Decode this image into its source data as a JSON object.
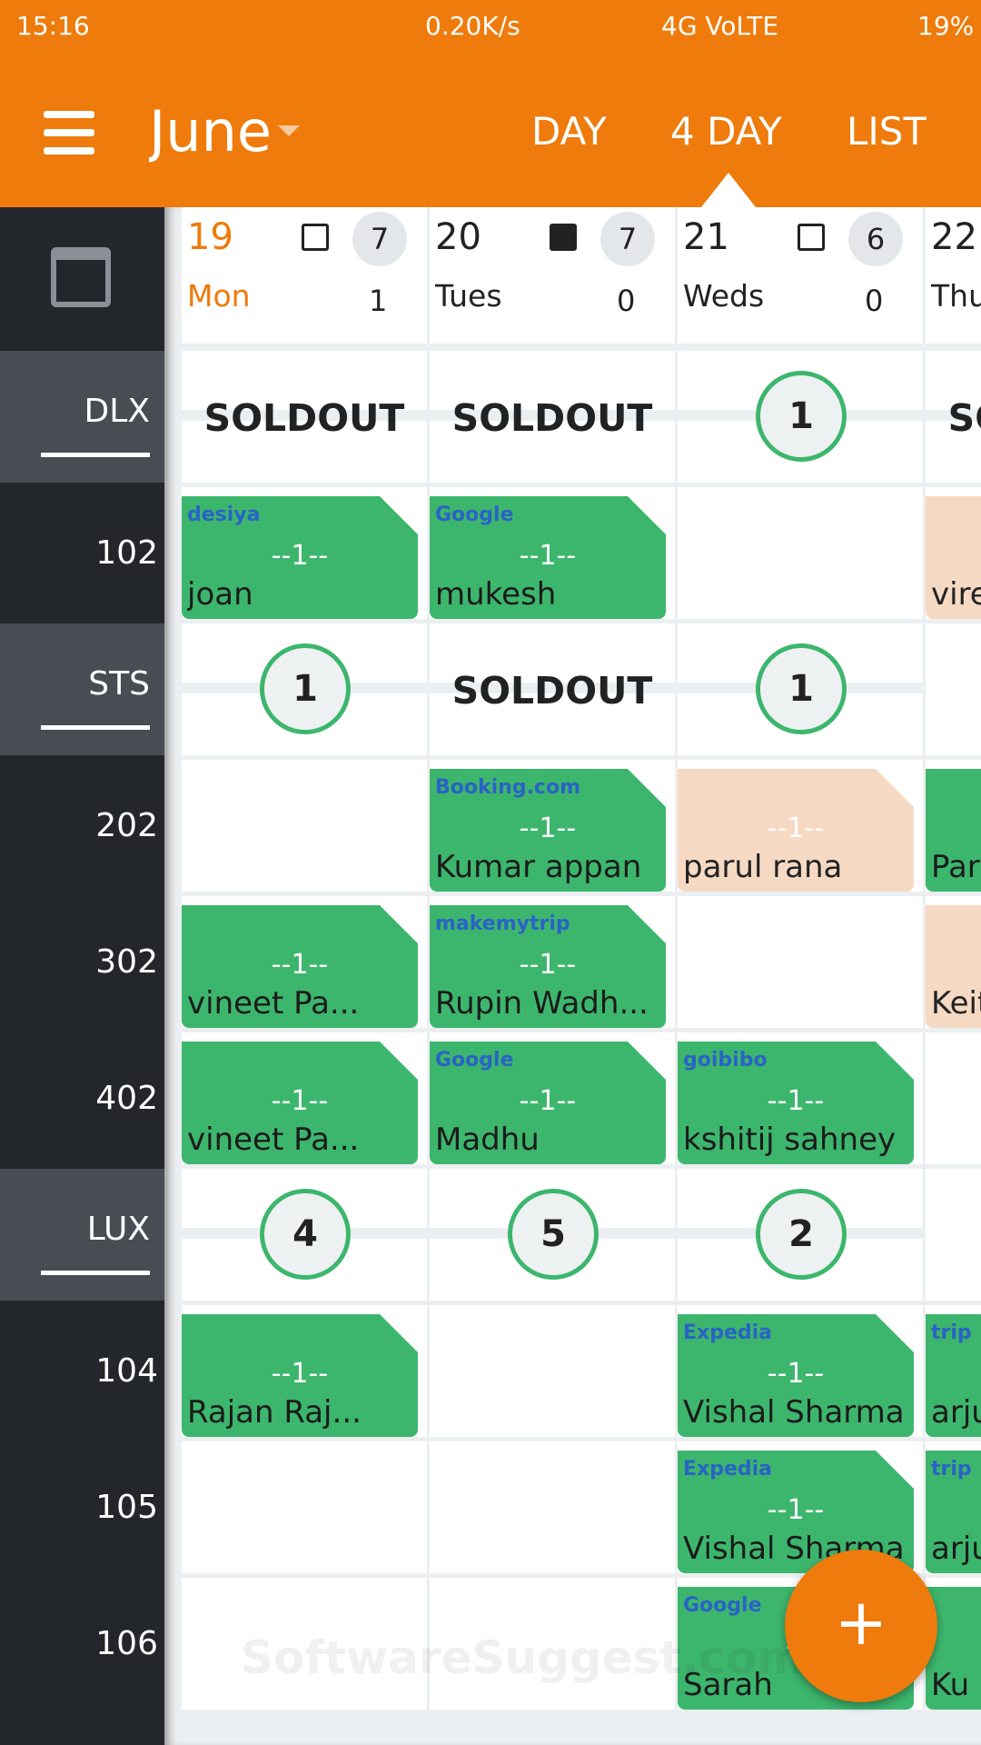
{
  "status_bar": {
    "time": "15:16",
    "speed": "0.20K/s",
    "network": "4G VoLTE",
    "battery": "19%"
  },
  "app_bar": {
    "month": "June",
    "tabs": [
      "DAY",
      "4 DAY",
      "LIST"
    ]
  },
  "columns": [
    {
      "date": "19",
      "day": "Mon",
      "notes": "7",
      "count": "1"
    },
    {
      "date": "20",
      "day": "Tues",
      "notes": "7",
      "count": "0"
    },
    {
      "date": "21",
      "day": "Weds",
      "notes": "6",
      "count": "0"
    },
    {
      "date": "22",
      "day": "Thu"
    }
  ],
  "rows": [
    {
      "label": "DLX",
      "kind": "category",
      "cells": [
        {
          "text": "SOLDOUT"
        },
        {
          "text": "SOLDOUT"
        },
        {
          "count": 1
        },
        {
          "text": "SOLDOUT"
        }
      ]
    },
    {
      "label": "102",
      "kind": "room",
      "cells": [
        {
          "source": "desiya",
          "ref": "--1--",
          "guest": "joan",
          "color": "#3db66d"
        },
        {
          "source": "Google",
          "ref": "--1--",
          "guest": "mukesh",
          "color": "#3db66d"
        },
        null,
        {
          "guest": "vire",
          "color": "#f5d9c3"
        }
      ]
    },
    {
      "label": "STS",
      "kind": "category",
      "cells": [
        {
          "count": 1
        },
        {
          "text": "SOLDOUT"
        },
        {
          "count": 1
        },
        null
      ]
    },
    {
      "label": "202",
      "kind": "room",
      "cells": [
        null,
        {
          "source": "Booking.com",
          "ref": "--1--",
          "guest": "Kumar appan",
          "color": "#3db66d"
        },
        {
          "ref": "--1--",
          "guest": "parul rana",
          "color": "#f5d9c3"
        },
        {
          "guest": "Par",
          "color": "#3db66d"
        }
      ]
    },
    {
      "label": "302",
      "kind": "room",
      "cells": [
        {
          "ref": "--1--",
          "guest": "vineet Pa...",
          "color": "#3db66d"
        },
        {
          "source": "makemytrip",
          "ref": "--1--",
          "guest": "Rupin Wadh...",
          "color": "#3db66d"
        },
        null,
        {
          "guest": "Keit",
          "color": "#f5d9c3"
        }
      ]
    },
    {
      "label": "402",
      "kind": "room",
      "cells": [
        {
          "ref": "--1--",
          "guest": "vineet Pa...",
          "color": "#3db66d"
        },
        {
          "source": "Google",
          "ref": "--1--",
          "guest": "Madhu",
          "color": "#3db66d"
        },
        {
          "source": "goibibo",
          "ref": "--1--",
          "guest": "kshitij sahney",
          "color": "#3db66d"
        },
        null
      ]
    },
    {
      "label": "LUX",
      "kind": "category",
      "cells": [
        {
          "count": 4
        },
        {
          "count": 5
        },
        {
          "count": 2
        },
        null
      ]
    },
    {
      "label": "104",
      "kind": "room",
      "cells": [
        {
          "ref": "--1--",
          "guest": "Rajan Raj...",
          "color": "#3db66d"
        },
        null,
        {
          "source": "Expedia",
          "ref": "--1--",
          "guest": "Vishal Sharma",
          "color": "#3db66d"
        },
        {
          "source": "trip",
          "guest": "arju",
          "color": "#3db66d"
        }
      ]
    },
    {
      "label": "105",
      "kind": "room",
      "cells": [
        null,
        null,
        {
          "source": "Expedia",
          "ref": "--1--",
          "guest": "Vishal Sharma",
          "color": "#3db66d"
        },
        {
          "source": "trip",
          "guest": "arju",
          "color": "#3db66d"
        }
      ]
    },
    {
      "label": "106",
      "kind": "room",
      "cells": [
        null,
        null,
        {
          "source": "Google",
          "ref": "--",
          "guest": "Sarah",
          "color": "#3db66d"
        },
        {
          "guest": "Ku",
          "color": "#3db66d"
        }
      ]
    }
  ],
  "watermark": "SoftwareSuggest.com",
  "fab": "+"
}
